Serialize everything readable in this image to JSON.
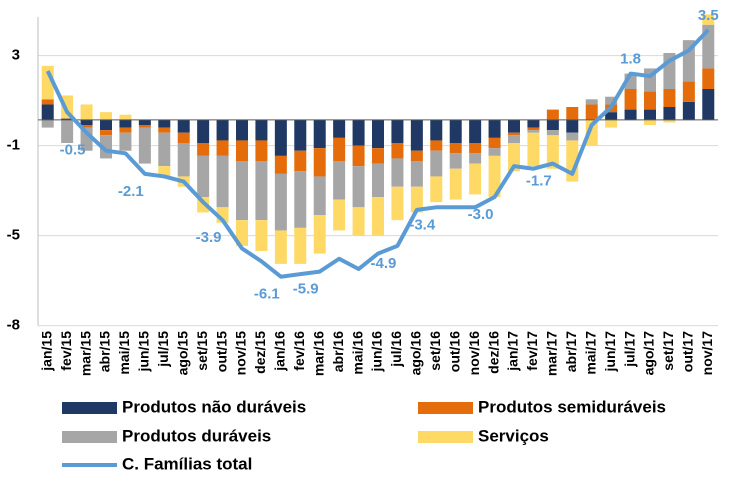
{
  "chart_data": {
    "type": "stacked-bar-line",
    "categories": [
      "jan/15",
      "fev/15",
      "mar/15",
      "abr/15",
      "mai/15",
      "jun/15",
      "jul/15",
      "ago/15",
      "set/15",
      "out/15",
      "nov/15",
      "dez/15",
      "jan/16",
      "fev/16",
      "mar/16",
      "abr/16",
      "mai/16",
      "jun/16",
      "jul/16",
      "ago/16",
      "set/16",
      "out/16",
      "nov/16",
      "dez/16",
      "jan/17",
      "fev/17",
      "mar/17",
      "abr/17",
      "mai/17",
      "jun/17",
      "jul/17",
      "ago/17",
      "set/17",
      "out/17",
      "nov/17"
    ],
    "series": [
      {
        "name": "Produtos não duráveis",
        "color": "#1f3864",
        "values": [
          0.6,
          0.05,
          -0.2,
          -0.4,
          -0.3,
          -0.2,
          -0.3,
          -0.5,
          -0.9,
          -0.8,
          -0.8,
          -0.8,
          -1.4,
          -1.2,
          -1.1,
          -0.7,
          -1.0,
          -1.1,
          -0.9,
          -1.2,
          -0.8,
          -0.9,
          -0.9,
          -0.7,
          -0.5,
          -0.3,
          -0.4,
          -0.5,
          0,
          0.3,
          0.4,
          0.4,
          0.5,
          0.7,
          1.2
        ]
      },
      {
        "name": "Produtos semiduráveis",
        "color": "#e46c0a",
        "values": [
          0.2,
          0,
          -0.1,
          -0.2,
          -0.2,
          -0.1,
          -0.2,
          -0.4,
          -0.5,
          -0.6,
          -0.8,
          -0.8,
          -0.7,
          -0.8,
          -1.1,
          -0.9,
          -0.8,
          -0.6,
          -0.6,
          -0.4,
          -0.4,
          -0.4,
          -0.4,
          -0.4,
          -0.1,
          -0.1,
          0.4,
          0.5,
          0.6,
          0.3,
          0.8,
          0.7,
          0.7,
          0.8,
          0.8
        ]
      },
      {
        "name": "Produtos duráveis",
        "color": "#a6a6a6",
        "values": [
          -0.3,
          -0.9,
          -0.9,
          -0.9,
          -0.7,
          -1.4,
          -1.3,
          -1.3,
          -1.6,
          -2.0,
          -2.3,
          -2.3,
          -2.2,
          -2.2,
          -1.5,
          -1.5,
          -1.6,
          -1.3,
          -1.1,
          -1.0,
          -1.0,
          -0.6,
          -0.4,
          -0.3,
          -0.3,
          -0.1,
          -0.2,
          -0.3,
          0.2,
          0.3,
          0.6,
          0.9,
          1.4,
          1.6,
          1.7
        ]
      },
      {
        "name": "Serviços",
        "color": "#ffd966",
        "values": [
          1.3,
          0.9,
          0.6,
          0.3,
          0.2,
          0,
          -0.4,
          -0.4,
          -0.6,
          -0.6,
          -1.0,
          -1.2,
          -1.3,
          -1.4,
          -1.5,
          -1.2,
          -1.1,
          -1.5,
          -1.3,
          -1.0,
          -1.0,
          -1.2,
          -1.2,
          -1.6,
          -1.1,
          -1.3,
          -1.3,
          -1.6,
          -1.0,
          -0.3,
          0,
          -0.2,
          -0.1,
          0,
          0.4
        ]
      }
    ],
    "line": {
      "name": "C. Famílias total",
      "color": "#5b9bd5",
      "values": [
        1.9,
        0.3,
        -0.5,
        -1.2,
        -1.3,
        -2.1,
        -2.2,
        -2.4,
        -3.2,
        -3.9,
        -5.0,
        -5.5,
        -6.1,
        -6.0,
        -5.9,
        -5.4,
        -5.8,
        -5.2,
        -4.9,
        -3.5,
        -3.4,
        -3.4,
        -3.4,
        -3.0,
        -1.8,
        -1.9,
        -1.7,
        -2.1,
        -0.2,
        0.5,
        1.8,
        1.7,
        2.3,
        2.7,
        3.5
      ],
      "value_labels": [
        null,
        null,
        "-0.5",
        null,
        null,
        "-2.1",
        null,
        null,
        null,
        "-3.9",
        null,
        null,
        "-6.1",
        null,
        "-5.9",
        null,
        null,
        null,
        "-4.9",
        null,
        "-3.4",
        null,
        null,
        "-3.0",
        null,
        null,
        "-1.7",
        null,
        null,
        null,
        "1.8",
        null,
        null,
        null,
        "3.5"
      ]
    },
    "ylim": [
      -8,
      4
    ],
    "yticks": [
      {
        "value": 2.5,
        "label": "3"
      },
      -1,
      {
        "value": -4.5,
        "label": "-5"
      },
      -8
    ],
    "grid": true
  }
}
